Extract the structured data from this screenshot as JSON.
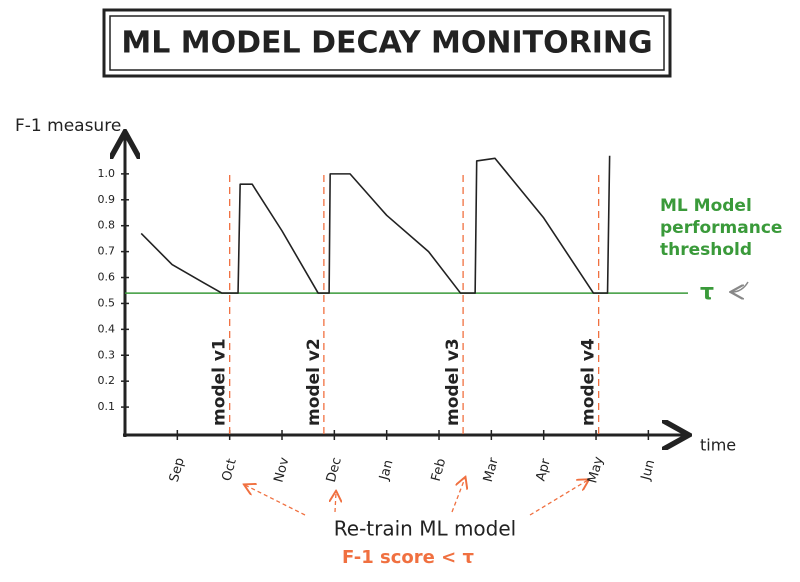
{
  "chart_data": {
    "type": "line",
    "title": "ML MODEL DECAY MONITORING",
    "y_label": "F-1 measure",
    "x_label": "time",
    "xlim": [
      0,
      10.7
    ],
    "ylim": [
      0,
      1.15
    ],
    "xticks": [
      {
        "value": 1,
        "label": "Sep"
      },
      {
        "value": 2,
        "label": "Oct"
      },
      {
        "value": 3,
        "label": "Nov"
      },
      {
        "value": 4,
        "label": "Dec"
      },
      {
        "value": 5,
        "label": "Jan"
      },
      {
        "value": 6,
        "label": "Feb"
      },
      {
        "value": 7,
        "label": "Mar"
      },
      {
        "value": 8,
        "label": "Apr"
      },
      {
        "value": 9,
        "label": "May"
      },
      {
        "value": 10,
        "label": "Jun"
      }
    ],
    "yticks": [
      0.1,
      0.2,
      0.3,
      0.4,
      0.5,
      0.6,
      0.7,
      {
        "value": 0.8,
        "label": "0.8"
      },
      0.9,
      {
        "value": 1,
        "label": "1.0"
      }
    ],
    "series": [
      {
        "name": "F-1",
        "color": "#222222",
        "x": [
          0.31,
          0.9,
          1.5,
          1.85,
          2.16,
          2.2,
          2.43,
          3.0,
          3.69,
          3.9,
          3.92,
          4.3,
          5.0,
          5.8,
          6.41,
          6.69,
          6.72,
          7.07,
          8.0,
          8.95,
          9.22,
          9.26
        ],
        "values": [
          0.77,
          0.65,
          0.58,
          0.54,
          0.54,
          0.96,
          0.96,
          0.78,
          0.54,
          0.54,
          1.0,
          1.0,
          0.84,
          0.7,
          0.54,
          0.54,
          1.05,
          1.06,
          0.83,
          0.54,
          0.54,
          1.07
        ]
      }
    ],
    "threshold": {
      "value": 0.54,
      "color": "#3a9a3a",
      "symbol": "τ",
      "label": [
        "ML Model",
        "performance",
        "threshold"
      ]
    },
    "retrain": {
      "color": "#f07040",
      "x": [
        2.0,
        3.8,
        6.46,
        9.05
      ],
      "labels": [
        "model v1",
        "model v2",
        "model v3",
        "model v4"
      ]
    },
    "retrain_note": "Re-train  ML model",
    "retrain_condition": "F-1 score < τ"
  }
}
